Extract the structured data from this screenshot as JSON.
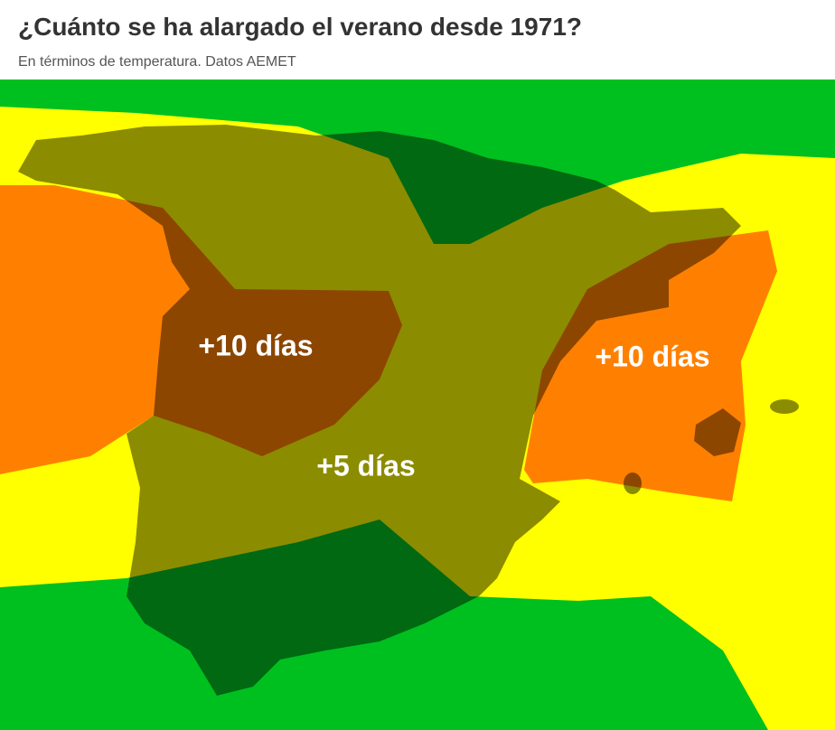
{
  "header": {
    "title": "¿Cuánto se ha alargado el verano desde 1971?",
    "subtitle": "En términos de temperatura. Datos AEMET"
  },
  "map": {
    "labels": [
      "+10 días",
      "+10 días",
      "+5 días"
    ]
  }
}
